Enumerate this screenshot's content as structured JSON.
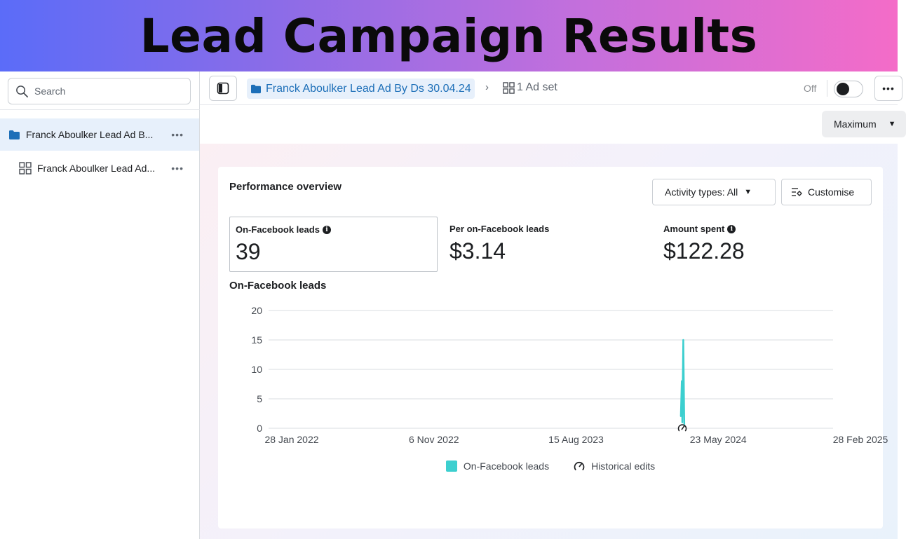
{
  "banner": {
    "title": "Lead Campaign Results"
  },
  "sidebar": {
    "search_placeholder": "Search",
    "items": [
      {
        "label": "Franck Aboulker Lead Ad B...",
        "icon": "folder-icon",
        "more": "•••"
      },
      {
        "label": "Franck Aboulker Lead Ad...",
        "icon": "grid-icon",
        "more": "•••"
      }
    ]
  },
  "topbar": {
    "campaign": "Franck Aboulker Lead Ad By Ds 30.04.24",
    "chevron": "›",
    "adset": "1 Ad set",
    "toggle_label": "Off",
    "toggle_state": "off",
    "more": "•••"
  },
  "subbar": {
    "attribution": "Maximum"
  },
  "overview": {
    "title": "Performance overview",
    "activity_filter": "Activity types: All",
    "customise": "Customise",
    "metrics": [
      {
        "label": "On-Facebook leads",
        "value": "39",
        "has_info": true
      },
      {
        "label": "Per on-Facebook leads",
        "value": "$3.14",
        "has_info": false
      },
      {
        "label": "Amount spent",
        "value": "$122.28",
        "has_info": true
      }
    ],
    "chart_title": "On-Facebook leads",
    "legend": {
      "series": "On-Facebook leads",
      "edits": "Historical edits"
    }
  },
  "chart_data": {
    "type": "line",
    "title": "On-Facebook leads",
    "xlabel": "",
    "ylabel": "",
    "ylim": [
      0,
      20
    ],
    "yticks": [
      0,
      5,
      10,
      15,
      20
    ],
    "x_tick_labels": [
      "28 Jan 2022",
      "6 Nov 2022",
      "15 Aug 2023",
      "23 May 2024",
      "28 Feb 2025"
    ],
    "x_range": [
      "2022-01-28",
      "2025-02-28"
    ],
    "grid": true,
    "legend_position": "bottom",
    "series": [
      {
        "name": "On-Facebook leads",
        "color": "#3ccfcf",
        "points": [
          {
            "x": "2024-04-30",
            "y": 2
          },
          {
            "x": "2024-05-02",
            "y": 8
          },
          {
            "x": "2024-05-03",
            "y": 1
          },
          {
            "x": "2024-05-05",
            "y": 15
          },
          {
            "x": "2024-05-07",
            "y": 0
          }
        ]
      }
    ],
    "historical_edit_markers": [
      "2024-05-03"
    ]
  }
}
